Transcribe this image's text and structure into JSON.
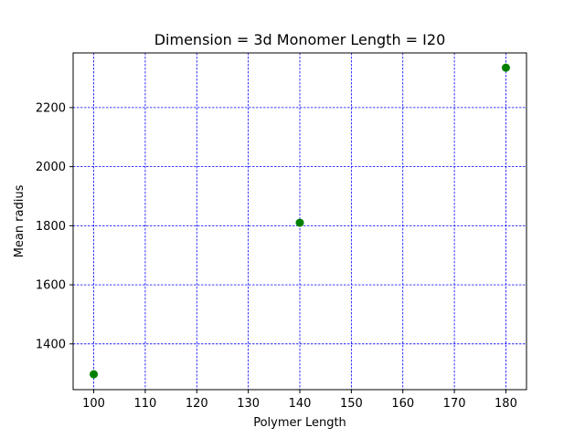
{
  "chart_data": {
    "type": "scatter",
    "title": "Dimension = 3d Monomer Length = I20",
    "xlabel": "Polymer Length",
    "ylabel": "Mean radius",
    "xlim": [
      96,
      184
    ],
    "ylim": [
      1245,
      2385
    ],
    "xticks": [
      100,
      110,
      120,
      130,
      140,
      150,
      160,
      170,
      180
    ],
    "yticks": [
      1400,
      1600,
      1800,
      2000,
      2200
    ],
    "grid": true,
    "grid_color": "#0000ff",
    "marker_color": "#008000",
    "x": [
      100,
      140,
      180
    ],
    "y": [
      1297,
      1810,
      2335
    ]
  }
}
